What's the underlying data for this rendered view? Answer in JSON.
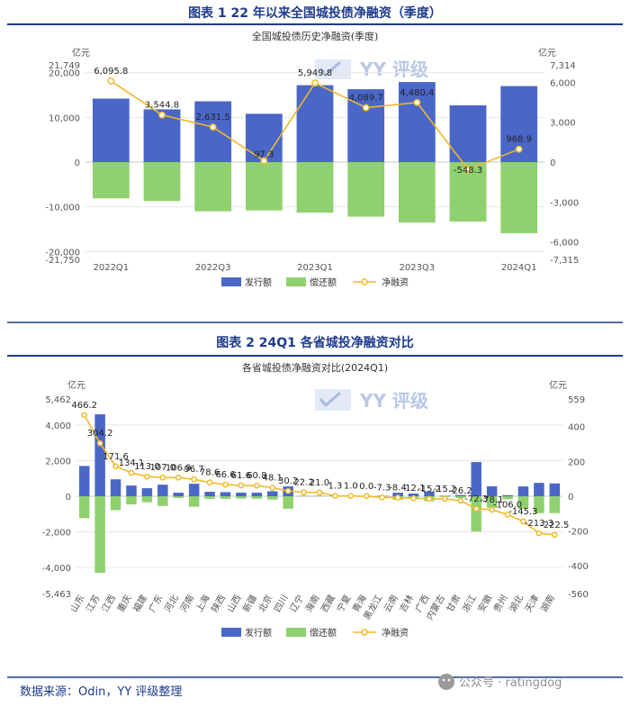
{
  "figure1": {
    "heading": "图表 1  22 年以来全国城投债净融资（季度）",
    "chart_title": "全国城投债历史净融资(季度)",
    "unit_left": "亿元",
    "unit_right": "亿元",
    "legend": [
      "发行额",
      "偿还额",
      "净融资"
    ],
    "watermark": "YY 评级"
  },
  "figure2": {
    "heading": "图表 2  24Q1 各省城投净融资对比",
    "chart_title": "各省城投债净融资对比(2024Q1)",
    "unit_left": "亿元",
    "unit_right": "亿元",
    "legend": [
      "发行额",
      "偿还额",
      "净融资"
    ],
    "watermark": "YY 评级"
  },
  "footer": {
    "source": "数据来源：Odin，YY 评级整理",
    "wechat": "公众号 · ratingdog"
  },
  "colors": {
    "issuance": "#4a67c8",
    "repayment": "#8fd16e",
    "net": "#f0b928",
    "heading": "#1f3b8c",
    "rule": "#1f3b8c"
  },
  "chart_data": [
    {
      "type": "bar+line",
      "title": "全国城投债历史净融资(季度)",
      "categories": [
        "2022Q1",
        "2022Q2",
        "2022Q3",
        "2022Q4",
        "2023Q1",
        "2023Q2",
        "2023Q3",
        "2023Q4",
        "2024Q1"
      ],
      "x_tick_labels": [
        "2022Q1",
        "",
        "2022Q3",
        "",
        "2023Q1",
        "",
        "2023Q3",
        "",
        "2024Q1"
      ],
      "series": [
        {
          "name": "发行额",
          "type": "bar",
          "axis": "left",
          "values": [
            14200,
            11800,
            13600,
            10800,
            17200,
            16300,
            17900,
            12700,
            17000
          ]
        },
        {
          "name": "偿还额",
          "type": "bar",
          "axis": "left",
          "values": [
            -8100,
            -8700,
            -11000,
            -10800,
            -11300,
            -12200,
            -13500,
            -13300,
            -15900
          ]
        },
        {
          "name": "净融资",
          "type": "line",
          "axis": "right",
          "values": [
            6095.8,
            3544.8,
            2631.5,
            97.3,
            5949.8,
            4089.7,
            4480.4,
            -548.3,
            968.9
          ],
          "labels": [
            "6,095.8",
            "3,544.8",
            "2,631.5",
            "97.3",
            "5,949.8",
            "4,089.7",
            "4,480.4",
            "-548.3",
            "968.9"
          ]
        }
      ],
      "left_axis": {
        "min": -21750,
        "max": 21749,
        "ticks": [
          20000,
          10000,
          0,
          -10000,
          -20000
        ],
        "tick_labels": [
          "20,000",
          "10,000",
          "0",
          "-10,000",
          "-20,000"
        ],
        "extreme_labels": [
          "21,749",
          "-21,750"
        ]
      },
      "right_axis": {
        "min": -7315,
        "max": 7314,
        "ticks": [
          6000,
          3000,
          0,
          -3000,
          -6000
        ],
        "tick_labels": [
          "6,000",
          "3,000",
          "0",
          "-3,000",
          "-6,000"
        ],
        "extreme_labels": [
          "7,314",
          "-7,315"
        ]
      }
    },
    {
      "type": "bar+line",
      "title": "各省城投债净融资对比(2024Q1)",
      "categories": [
        "山东",
        "江苏",
        "江西",
        "重庆",
        "福建",
        "广东",
        "河北",
        "河南",
        "上海",
        "陕西",
        "山西",
        "新疆",
        "北京",
        "四川",
        "辽宁",
        "海南",
        "西藏",
        "宁夏",
        "青海",
        "黑龙江",
        "云南",
        "吉林",
        "广西",
        "内蒙古",
        "甘肃",
        "浙江",
        "安徽",
        "贵州",
        "湖北",
        "天津",
        "湖南"
      ],
      "series": [
        {
          "name": "发行额",
          "type": "bar",
          "axis": "left",
          "values": [
            1700,
            4600,
            950,
            600,
            450,
            650,
            200,
            700,
            250,
            230,
            200,
            200,
            280,
            550,
            20,
            20,
            20,
            10,
            10,
            20,
            200,
            150,
            260,
            30,
            70,
            1920,
            560,
            60,
            550,
            750,
            720
          ]
        },
        {
          "name": "偿还额",
          "type": "bar",
          "axis": "left",
          "values": [
            -1230,
            -4300,
            -780,
            -460,
            -340,
            -550,
            -100,
            -590,
            -150,
            -150,
            -130,
            -140,
            -190,
            -700,
            -10,
            -10,
            -10,
            -10,
            -10,
            -30,
            -200,
            -160,
            -280,
            -40,
            -100,
            -1980,
            -650,
            -170,
            -700,
            -950,
            -950
          ]
        },
        {
          "name": "净融资",
          "type": "line",
          "axis": "right",
          "values": [
            466.2,
            304.2,
            171.6,
            134.1,
            113.0,
            107.0,
            106.9,
            96.7,
            78.6,
            66.6,
            61.6,
            60.8,
            48.1,
            30.2,
            22.2,
            21.0,
            1.3,
            1.0,
            0.0,
            -7.3,
            -8.4,
            -12.1,
            -15.2,
            -15.2,
            -26.2,
            -72.3,
            -78.1,
            -106.0,
            -145.3,
            -213.3,
            -222.5
          ],
          "labels": [
            "466.2",
            "304.2",
            "171.6",
            "134.1",
            "113.0",
            "107.0",
            "106.9",
            "96.7",
            "78.6",
            "66.6",
            "61.6",
            "60.8",
            "48.1",
            "30.2",
            "22.2",
            "21.0",
            "1.3",
            "1.0",
            "0.0",
            "-7.3",
            "-8.4",
            "-12.1",
            "-15.2",
            "-15.2",
            "-26.2",
            "-72.3",
            "-78.1",
            "-106.0",
            "-145.3",
            "-213.3",
            "-222.5"
          ]
        }
      ],
      "left_axis": {
        "min": -5463,
        "max": 5462,
        "ticks": [
          4000,
          2000,
          0,
          -2000,
          -4000
        ],
        "tick_labels": [
          "4,000",
          "2,000",
          "0",
          "-2,000",
          "-4,000"
        ],
        "extreme_labels": [
          "5,462",
          "-5,463"
        ]
      },
      "right_axis": {
        "min": -560,
        "max": 559,
        "ticks": [
          400,
          200,
          0,
          -200,
          -400
        ],
        "tick_labels": [
          "400",
          "200",
          "0",
          "-200",
          "-400"
        ],
        "extreme_labels": [
          "559",
          "-560"
        ]
      }
    }
  ]
}
